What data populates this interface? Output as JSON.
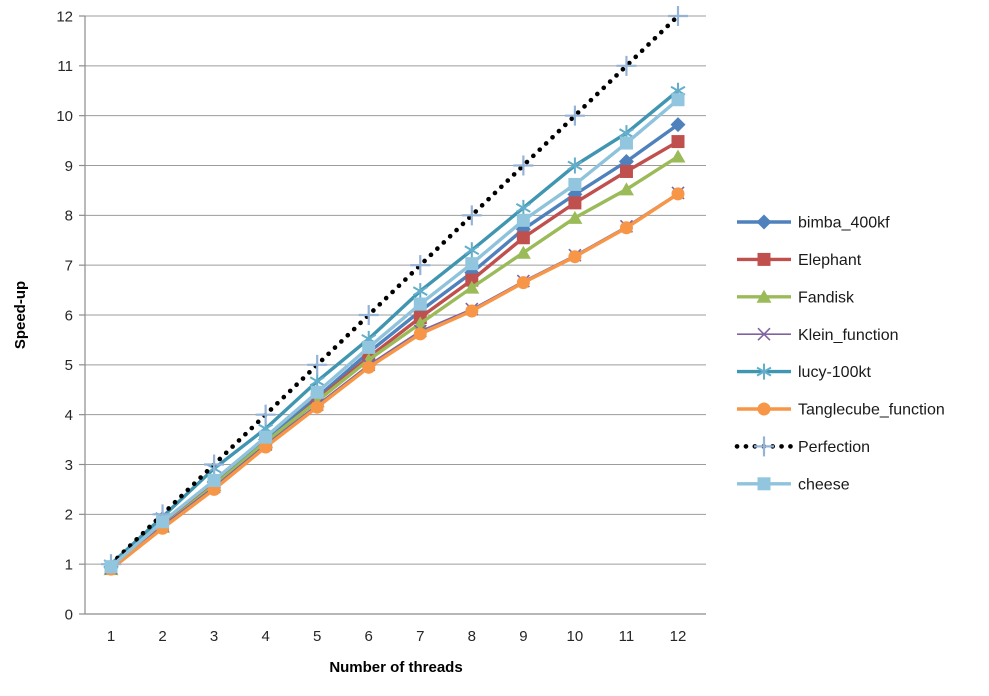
{
  "chart_data": {
    "type": "line",
    "title": "",
    "xlabel": "Number of threads",
    "ylabel": "Speed-up",
    "x": [
      1,
      2,
      3,
      4,
      5,
      6,
      7,
      8,
      9,
      10,
      11,
      12
    ],
    "x_ticks": [
      1,
      2,
      3,
      4,
      5,
      6,
      7,
      8,
      9,
      10,
      11,
      12
    ],
    "y_ticks": [
      0,
      1,
      2,
      3,
      4,
      5,
      6,
      7,
      8,
      9,
      10,
      11,
      12
    ],
    "ylim": [
      0,
      12
    ],
    "grid": true,
    "legend_position": "right",
    "series": [
      {
        "name": "bimba_400kf",
        "color": "#4F81BD",
        "marker": "diamond",
        "marker_color": "#4F81BD",
        "line_style": "solid",
        "line_width": 3.4,
        "values": [
          0.95,
          1.82,
          2.65,
          3.5,
          4.35,
          5.25,
          6.08,
          6.85,
          7.72,
          8.42,
          9.08,
          9.82
        ]
      },
      {
        "name": "Elephant",
        "color": "#C0504D",
        "marker": "square",
        "marker_color": "#C0504D",
        "line_style": "solid",
        "line_width": 3.4,
        "values": [
          0.93,
          1.8,
          2.6,
          3.42,
          4.3,
          5.15,
          5.95,
          6.7,
          7.55,
          8.25,
          8.88,
          9.48
        ]
      },
      {
        "name": "Fandisk",
        "color": "#9BBB59",
        "marker": "triangle",
        "marker_color": "#9BBB59",
        "line_style": "solid",
        "line_width": 3.4,
        "values": [
          0.9,
          1.75,
          2.58,
          3.45,
          4.27,
          5.1,
          5.83,
          6.55,
          7.25,
          7.95,
          8.52,
          9.18
        ]
      },
      {
        "name": "Klein_function",
        "color": "#8064A2",
        "marker": "x",
        "marker_color": "#8064A2",
        "line_style": "solid",
        "line_width": 1.6,
        "values": [
          0.92,
          1.77,
          2.55,
          3.4,
          4.2,
          5.0,
          5.68,
          6.12,
          6.68,
          7.2,
          7.78,
          8.45
        ]
      },
      {
        "name": "lucy-100kt",
        "color": "#4096B0",
        "marker": "asterisk",
        "marker_color": "#62AECB",
        "line_style": "solid",
        "line_width": 3.4,
        "values": [
          1.0,
          1.95,
          2.92,
          3.72,
          4.67,
          5.52,
          6.48,
          7.3,
          8.15,
          9.0,
          9.65,
          10.5
        ]
      },
      {
        "name": "Tanglecube_function",
        "color": "#F79646",
        "marker": "circle",
        "marker_color": "#F79646",
        "line_style": "solid",
        "line_width": 3.4,
        "values": [
          0.9,
          1.72,
          2.5,
          3.35,
          4.15,
          4.95,
          5.62,
          6.08,
          6.65,
          7.17,
          7.75,
          8.43
        ]
      },
      {
        "name": "Perfection",
        "color": "#000000",
        "marker": "plus",
        "marker_color": "#95B3D7",
        "line_style": "dotted",
        "line_width": 4.6,
        "values": [
          1,
          2,
          3,
          4,
          5,
          6,
          7,
          8,
          9,
          10,
          11,
          12
        ]
      },
      {
        "name": "cheese",
        "color": "#8FC3DC",
        "marker": "square",
        "marker_color": "#92C6DE",
        "line_style": "solid",
        "line_width": 3.4,
        "values": [
          0.95,
          1.85,
          2.68,
          3.55,
          4.45,
          5.35,
          6.22,
          7.03,
          7.9,
          8.62,
          9.45,
          10.32
        ]
      }
    ]
  },
  "style": {
    "gridline_color": "#9C9C9C",
    "axis_color": "#8C8C8C",
    "background": "#FFFFFF"
  }
}
